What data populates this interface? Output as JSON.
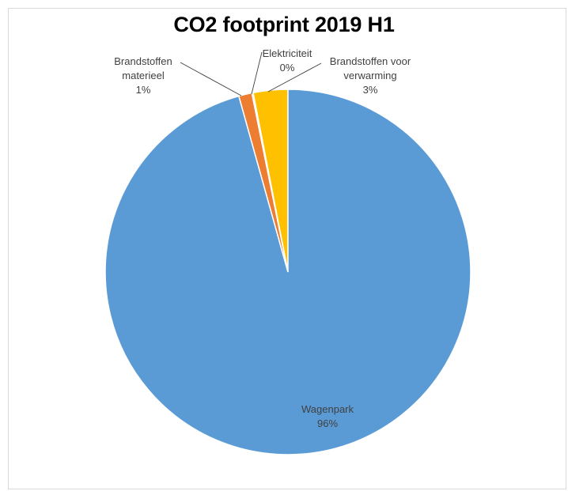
{
  "chart_data": {
    "type": "pie",
    "title": "CO2 footprint 2019 H1",
    "slices": [
      {
        "name": "Brandstoffen voor verwarming",
        "label_lines": [
          "Brandstoffen voor",
          "verwarming"
        ],
        "value": 3,
        "pct": "3%",
        "color": "#FFC000"
      },
      {
        "name": "Wagenpark",
        "label_lines": [
          "Wagenpark"
        ],
        "value": 96,
        "pct": "96%",
        "color": "#5B9BD5"
      },
      {
        "name": "Brandstoffen materieel",
        "label_lines": [
          "Brandstoffen",
          "materieel"
        ],
        "value": 1,
        "pct": "1%",
        "color": "#ED7D31"
      },
      {
        "name": "Elektriciteit",
        "label_lines": [
          "Elektriciteit"
        ],
        "value": 0,
        "pct": "0%",
        "color": "#A5A5A5"
      }
    ]
  }
}
